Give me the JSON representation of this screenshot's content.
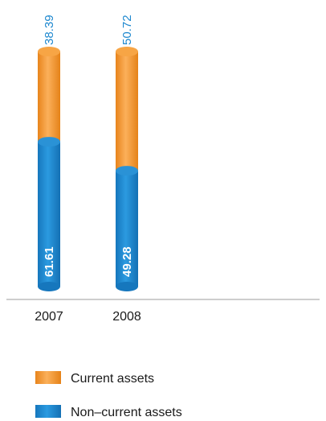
{
  "chart_data": {
    "type": "bar",
    "stacked": true,
    "categories": [
      "2007",
      "2008"
    ],
    "series": [
      {
        "name": "Non–current assets",
        "values": [
          61.61,
          49.28
        ],
        "color": "#1e88cf"
      },
      {
        "name": "Current assets",
        "values": [
          38.39,
          50.72
        ],
        "color": "#f39a2e"
      }
    ],
    "ylim": [
      0,
      100
    ],
    "grid": false,
    "legend_position": "bottom-left",
    "title": "",
    "xlabel": "",
    "ylabel": ""
  },
  "legend": {
    "items": [
      {
        "label": "Current assets",
        "color": "#f39a2e"
      },
      {
        "label": "Non–current assets",
        "color": "#1e88cf"
      }
    ]
  }
}
